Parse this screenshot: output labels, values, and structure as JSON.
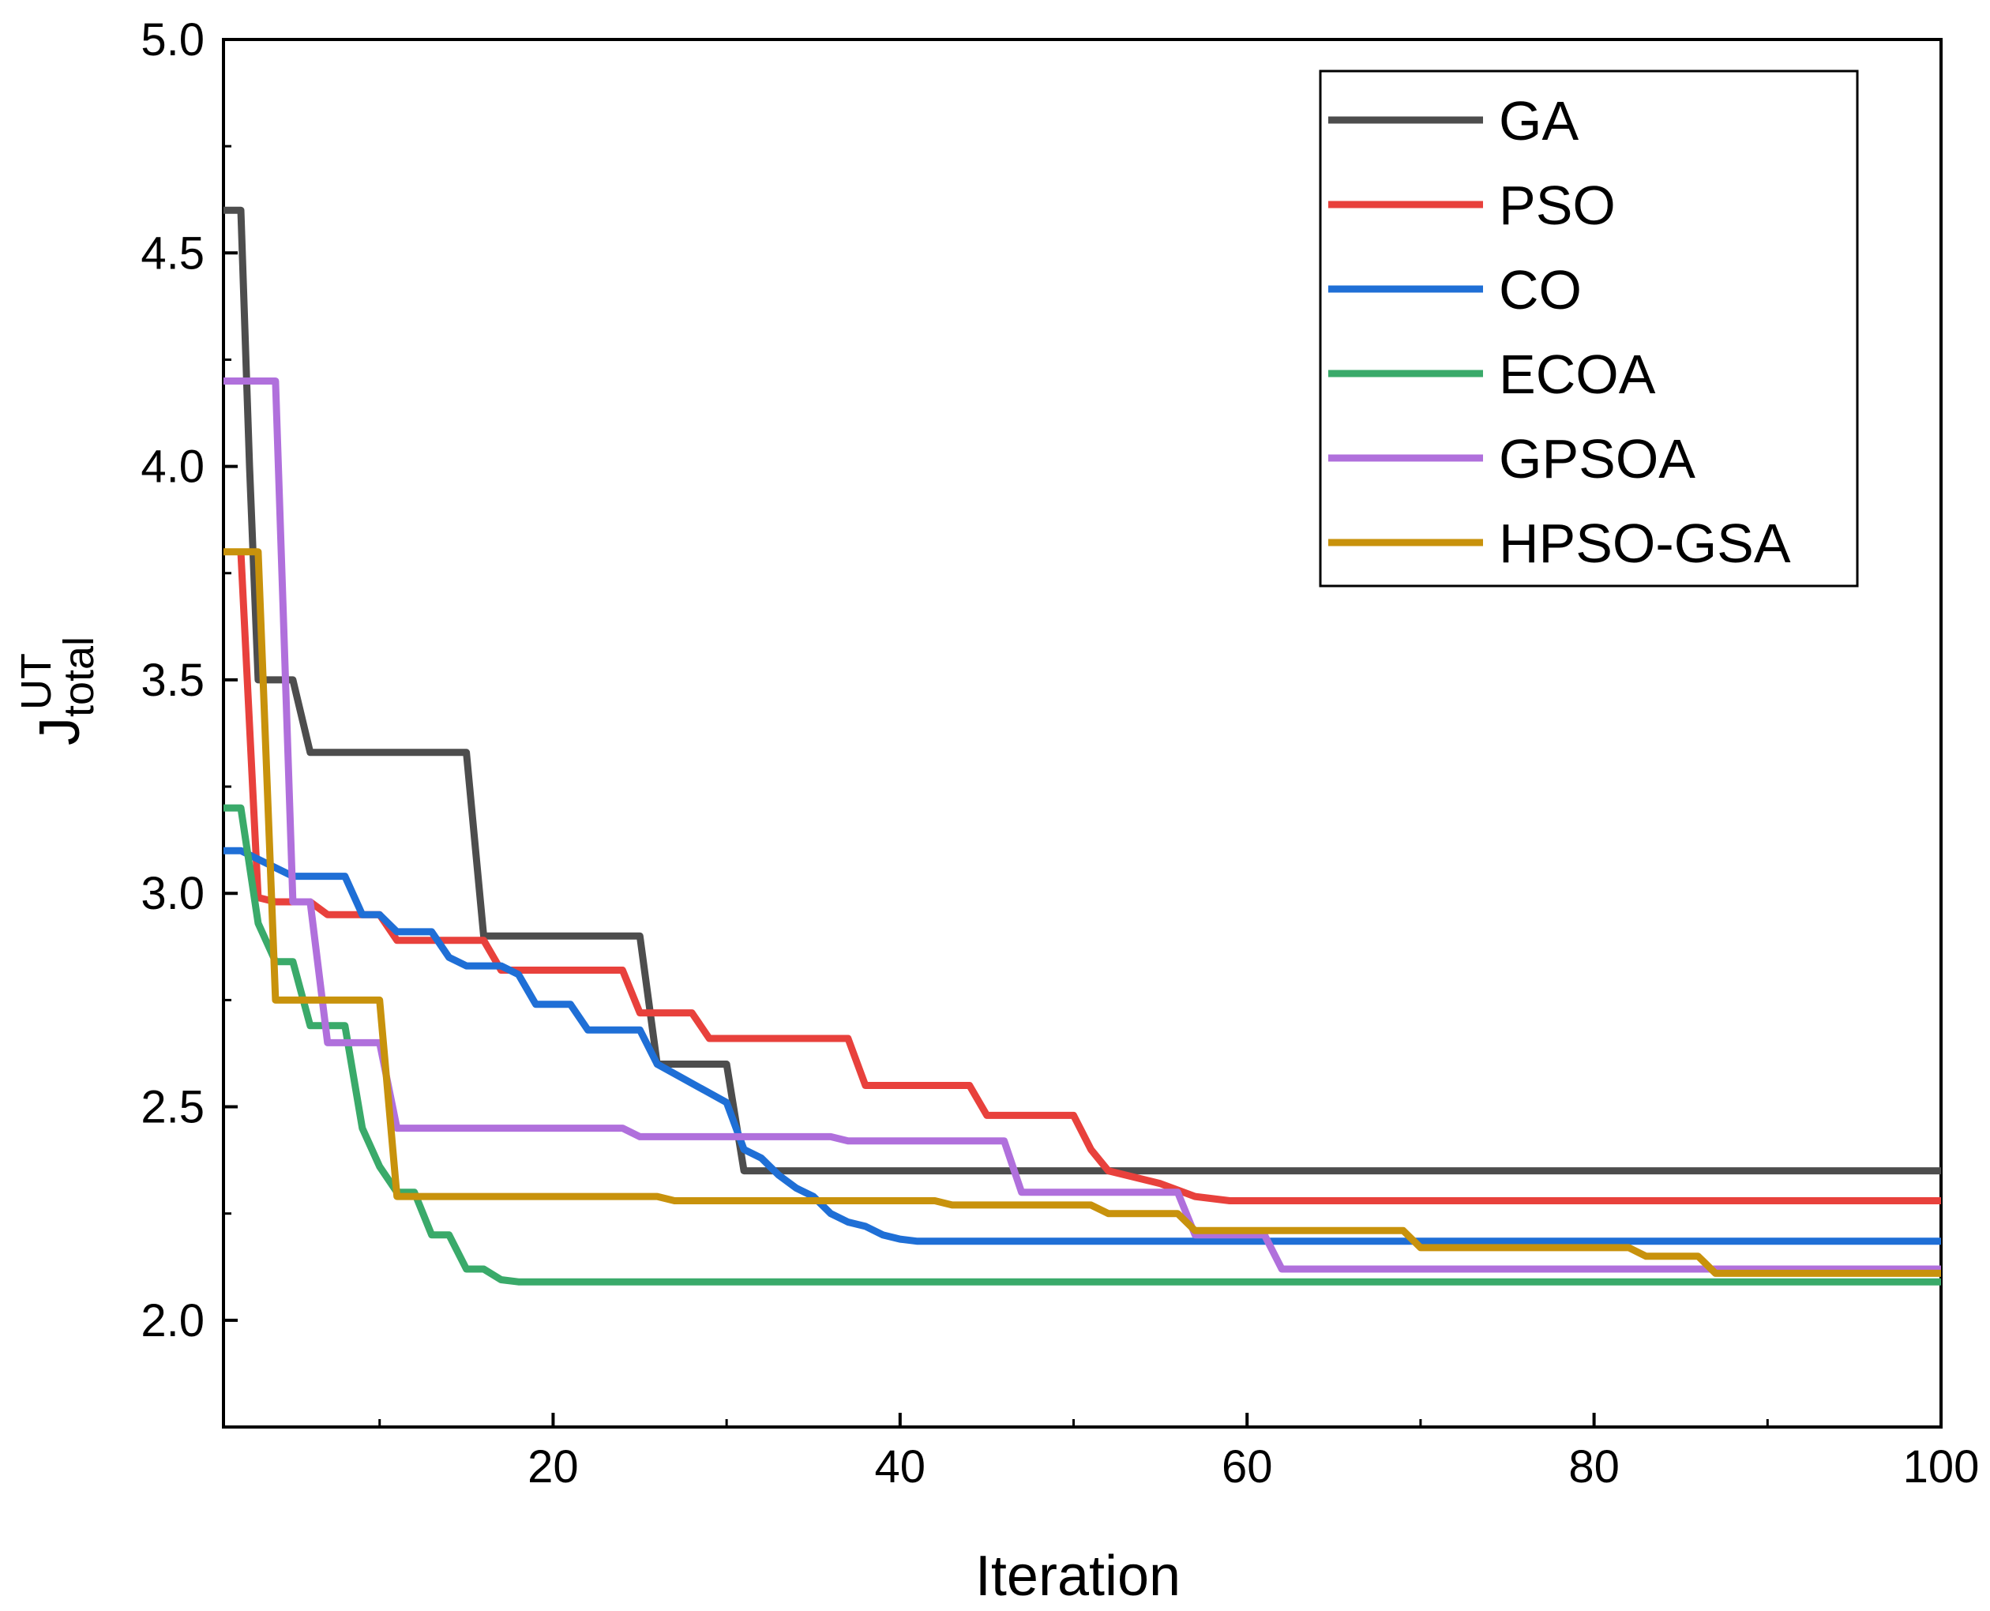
{
  "chart_data": {
    "type": "line",
    "title": "",
    "xlabel": "Iteration",
    "ylabel": {
      "base": "J",
      "sup": "UT",
      "sub": "total"
    },
    "xlim": [
      1,
      100
    ],
    "ylim": [
      1.75,
      5.0
    ],
    "xticks": [
      20,
      40,
      60,
      80,
      100
    ],
    "xtick_labels": [
      "20",
      "40",
      "60",
      "80",
      "100"
    ],
    "yticks": [
      2.0,
      2.5,
      3.0,
      3.5,
      4.0,
      4.5,
      5.0
    ],
    "ytick_labels": [
      "2.0",
      "2.5",
      "3.0",
      "3.5",
      "4.0",
      "4.5",
      "5.0"
    ],
    "legend_position": "top-right",
    "grid": false,
    "series": [
      {
        "name": "GA",
        "color": "#4d4d4d",
        "x": [
          1,
          2,
          2.5,
          3,
          3.4,
          5,
          6,
          15,
          16,
          25,
          26,
          30,
          31,
          100
        ],
        "y": [
          4.6,
          4.6,
          4.0,
          3.5,
          3.5,
          3.5,
          3.33,
          3.33,
          2.9,
          2.9,
          2.6,
          2.6,
          2.35,
          2.35
        ]
      },
      {
        "name": "PSO",
        "color": "#e8413c",
        "x": [
          2,
          3,
          4,
          5,
          6,
          7,
          10,
          11,
          16,
          17,
          24,
          25,
          28,
          29,
          37,
          38,
          44,
          45,
          50,
          51,
          52,
          55,
          57,
          59,
          100
        ],
        "y": [
          3.8,
          2.99,
          2.98,
          2.98,
          2.98,
          2.95,
          2.95,
          2.89,
          2.89,
          2.82,
          2.82,
          2.72,
          2.72,
          2.66,
          2.66,
          2.55,
          2.55,
          2.48,
          2.48,
          2.4,
          2.35,
          2.32,
          2.29,
          2.28,
          2.28
        ]
      },
      {
        "name": "CO",
        "color": "#1f6fd6",
        "x": [
          1,
          2,
          3,
          4,
          5,
          8,
          9,
          10,
          11,
          13,
          14,
          15,
          17,
          18,
          19,
          21,
          22,
          25,
          26,
          30,
          31,
          32,
          33,
          34,
          35,
          36,
          37,
          38,
          39,
          40,
          41,
          100
        ],
        "y": [
          3.1,
          3.1,
          3.08,
          3.06,
          3.04,
          3.04,
          2.95,
          2.95,
          2.91,
          2.91,
          2.85,
          2.83,
          2.83,
          2.81,
          2.74,
          2.74,
          2.68,
          2.68,
          2.6,
          2.51,
          2.4,
          2.38,
          2.34,
          2.31,
          2.29,
          2.25,
          2.23,
          2.22,
          2.2,
          2.19,
          2.185,
          2.185
        ]
      },
      {
        "name": "ECOA",
        "color": "#3aaa6a",
        "x": [
          1,
          2,
          3,
          4,
          5,
          6,
          7,
          8,
          9,
          10,
          11,
          12,
          13,
          14,
          15,
          16,
          17,
          18,
          20,
          100
        ],
        "y": [
          3.2,
          3.2,
          2.93,
          2.84,
          2.84,
          2.69,
          2.69,
          2.69,
          2.45,
          2.36,
          2.3,
          2.3,
          2.2,
          2.2,
          2.12,
          2.12,
          2.095,
          2.09,
          2.09,
          2.09
        ]
      },
      {
        "name": "GPSOA",
        "color": "#b070dc",
        "x": [
          1,
          4,
          5,
          6,
          7,
          10,
          11,
          24,
          25,
          36,
          37,
          46,
          47,
          56,
          57,
          61,
          62,
          100
        ],
        "y": [
          4.2,
          4.2,
          2.98,
          2.98,
          2.65,
          2.65,
          2.45,
          2.45,
          2.43,
          2.43,
          2.42,
          2.42,
          2.3,
          2.3,
          2.2,
          2.2,
          2.12,
          2.12
        ]
      },
      {
        "name": "HPSO-GSA",
        "color": "#c8920c",
        "x": [
          1,
          3,
          4,
          5,
          10,
          11,
          26,
          27,
          42,
          43,
          51,
          52,
          56,
          57,
          69,
          70,
          82,
          83,
          86,
          87,
          100
        ],
        "y": [
          3.8,
          3.8,
          2.75,
          2.75,
          2.75,
          2.29,
          2.29,
          2.28,
          2.28,
          2.27,
          2.27,
          2.25,
          2.25,
          2.21,
          2.21,
          2.17,
          2.17,
          2.15,
          2.15,
          2.11,
          2.11
        ]
      }
    ]
  }
}
